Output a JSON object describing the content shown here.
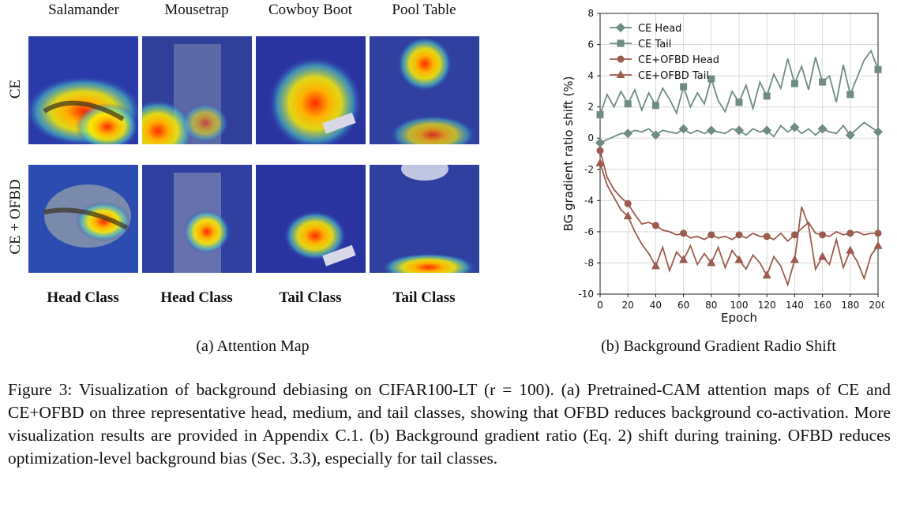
{
  "panel_a": {
    "columns": [
      "Salamander",
      "Mousetrap",
      "Cowboy Boot",
      "Pool Table"
    ],
    "rows": [
      "CE",
      "CE + OFBD"
    ],
    "class_labels": [
      "Head Class",
      "Head Class",
      "Tail Class",
      "Tail Class"
    ],
    "subcaption": "(a) Attention Map"
  },
  "panel_b": {
    "subcaption": "(b) Background Gradient Radio Shift"
  },
  "caption": "Figure 3: Visualization of background debiasing on CIFAR100-LT (r = 100). (a) Pretrained-CAM attention maps of CE and CE+OFBD on three representative head, medium, and tail classes, showing that OFBD reduces background co-activation. More visualization results are provided in Appendix C.1. (b) Background gradient ratio (Eq. 2) shift during training. OFBD reduces optimization-level background bias (Sec. 3.3), especially for tail classes.",
  "colors": {
    "ce": "#6f8c7f",
    "ofbd": "#9c5b4e",
    "grid": "#d9d9d9"
  },
  "chart_data": {
    "type": "line",
    "xlabel": "Epoch",
    "ylabel": "BG gradient ratio shift (%)",
    "xlim": [
      0,
      200
    ],
    "ylim": [
      -10,
      8
    ],
    "xticks": [
      0,
      20,
      40,
      60,
      80,
      100,
      120,
      140,
      160,
      180,
      200
    ],
    "yticks": [
      -10,
      -8,
      -6,
      -4,
      -2,
      0,
      2,
      4,
      6,
      8
    ],
    "grid": true,
    "legend": "top-left",
    "series": [
      {
        "name": "CE Head",
        "marker": "diamond",
        "x": [
          0,
          5,
          10,
          15,
          20,
          25,
          30,
          35,
          40,
          45,
          50,
          55,
          60,
          65,
          70,
          75,
          80,
          85,
          90,
          95,
          100,
          105,
          110,
          115,
          120,
          125,
          130,
          135,
          140,
          145,
          150,
          155,
          160,
          165,
          170,
          175,
          180,
          185,
          190,
          195,
          200
        ],
        "y": [
          -0.3,
          -0.1,
          0.1,
          0.3,
          0.3,
          0.5,
          0.4,
          0.6,
          0.2,
          0.5,
          0.4,
          0.3,
          0.6,
          0.3,
          0.5,
          0.3,
          0.5,
          0.4,
          0.3,
          0.6,
          0.5,
          0.2,
          0.6,
          0.4,
          0.5,
          0.1,
          0.8,
          0.4,
          0.7,
          0.3,
          0.6,
          0.2,
          0.6,
          0.4,
          0.3,
          0.8,
          0.2,
          0.6,
          1.0,
          0.7,
          0.4
        ]
      },
      {
        "name": "CE Tail",
        "marker": "square",
        "x": [
          0,
          5,
          10,
          15,
          20,
          25,
          30,
          35,
          40,
          45,
          50,
          55,
          60,
          65,
          70,
          75,
          80,
          85,
          90,
          95,
          100,
          105,
          110,
          115,
          120,
          125,
          130,
          135,
          140,
          145,
          150,
          155,
          160,
          165,
          170,
          175,
          180,
          185,
          190,
          195,
          200
        ],
        "y": [
          1.5,
          2.8,
          2.0,
          3.0,
          2.2,
          3.1,
          1.8,
          2.9,
          2.1,
          3.2,
          2.5,
          1.6,
          3.3,
          2.0,
          2.9,
          2.2,
          3.8,
          2.4,
          1.7,
          3.0,
          2.3,
          3.4,
          1.9,
          3.6,
          2.7,
          4.1,
          3.2,
          5.1,
          3.5,
          4.6,
          3.1,
          5.2,
          3.6,
          4.0,
          2.3,
          4.7,
          2.8,
          3.9,
          5.0,
          5.6,
          4.4
        ]
      },
      {
        "name": "CE+OFBD Head",
        "marker": "circle",
        "x": [
          0,
          5,
          10,
          15,
          20,
          25,
          30,
          35,
          40,
          45,
          50,
          55,
          60,
          65,
          70,
          75,
          80,
          85,
          90,
          95,
          100,
          105,
          110,
          115,
          120,
          125,
          130,
          135,
          140,
          145,
          150,
          155,
          160,
          165,
          170,
          175,
          180,
          185,
          190,
          195,
          200
        ],
        "y": [
          -0.8,
          -2.5,
          -3.3,
          -3.8,
          -4.2,
          -4.9,
          -5.5,
          -5.4,
          -5.6,
          -5.9,
          -6.0,
          -6.2,
          -6.1,
          -6.4,
          -6.3,
          -6.5,
          -6.2,
          -6.4,
          -6.3,
          -6.5,
          -6.2,
          -6.4,
          -6.1,
          -6.3,
          -6.3,
          -6.5,
          -6.1,
          -6.6,
          -6.2,
          -5.8,
          -5.4,
          -6.1,
          -6.2,
          -6.3,
          -6.0,
          -6.2,
          -6.1,
          -6.0,
          -6.2,
          -6.1,
          -6.1
        ]
      },
      {
        "name": "CE+OFBD Tail",
        "marker": "triangle",
        "x": [
          0,
          5,
          10,
          15,
          20,
          25,
          30,
          35,
          40,
          45,
          50,
          55,
          60,
          65,
          70,
          75,
          80,
          85,
          90,
          95,
          100,
          105,
          110,
          115,
          120,
          125,
          130,
          135,
          140,
          145,
          150,
          155,
          160,
          165,
          170,
          175,
          180,
          185,
          190,
          195,
          200
        ],
        "y": [
          -1.6,
          -3.0,
          -3.8,
          -4.6,
          -5.0,
          -6.0,
          -6.8,
          -7.4,
          -8.2,
          -7.0,
          -8.5,
          -7.3,
          -7.8,
          -6.9,
          -8.1,
          -7.4,
          -8.0,
          -7.0,
          -8.3,
          -7.2,
          -7.8,
          -8.4,
          -7.5,
          -8.0,
          -8.8,
          -7.6,
          -8.2,
          -9.4,
          -7.8,
          -4.4,
          -5.6,
          -8.4,
          -7.6,
          -8.1,
          -6.5,
          -8.3,
          -7.2,
          -7.9,
          -9.0,
          -7.5,
          -6.9
        ]
      }
    ]
  }
}
